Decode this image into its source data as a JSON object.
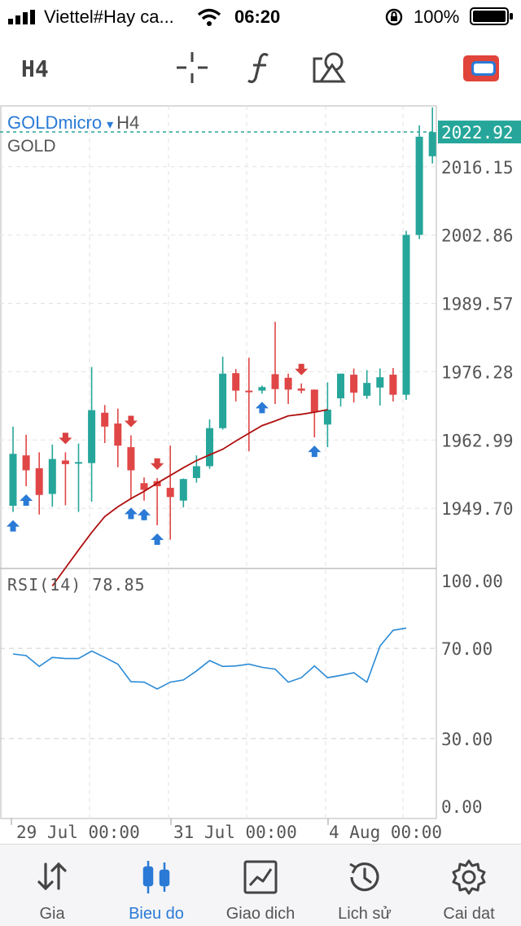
{
  "status_bar": {
    "carrier": "Viettel#Hay ca...",
    "time": "06:20",
    "battery_percent": "100%",
    "icons": [
      "signal-bars-icon",
      "wifi-icon",
      "orientation-lock-icon",
      "battery-icon"
    ]
  },
  "toolbar": {
    "timeframe": "H4",
    "icons": [
      "crosshair-icon",
      "indicator-function-icon",
      "objects-shapes-icon",
      "trade-toggle-icon"
    ]
  },
  "chart": {
    "symbol": "GOLDmicro",
    "caret": "▾",
    "symbol_timeframe": "H4",
    "description": "GOLD",
    "current_price": "2022.92",
    "price_axis": [
      "2016.15",
      "2002.86",
      "1989.57",
      "1976.28",
      "1962.99",
      "1949.70"
    ],
    "rsi_label": "RSI(14) 78.85",
    "rsi_axis": [
      "100.00",
      "70.00",
      "30.00",
      "0.00"
    ],
    "time_axis": [
      "29 Jul 00:00",
      "31 Jul 00:00",
      "4 Aug 00:00"
    ],
    "colors": {
      "bull": "#26a69a",
      "bear": "#e04646",
      "ma": "#b01010",
      "rsi": "#2a8ad6",
      "price_tag": "#26a69a"
    }
  },
  "chart_data": {
    "type": "candlestick",
    "candles": [
      {
        "o": 1950.2,
        "h": 1965.6,
        "l": 1949.0,
        "c": 1960.3
      },
      {
        "o": 1960.0,
        "h": 1964.0,
        "l": 1954.0,
        "c": 1957.1
      },
      {
        "o": 1957.5,
        "h": 1960.6,
        "l": 1948.5,
        "c": 1952.3
      },
      {
        "o": 1952.5,
        "h": 1962.1,
        "l": 1950.0,
        "c": 1959.3
      },
      {
        "o": 1959.0,
        "h": 1960.6,
        "l": 1950.3,
        "c": 1958.3
      },
      {
        "o": 1958.5,
        "h": 1962.3,
        "l": 1949.0,
        "c": 1958.7
      },
      {
        "o": 1958.5,
        "h": 1977.2,
        "l": 1951.0,
        "c": 1968.8
      },
      {
        "o": 1968.3,
        "h": 1969.8,
        "l": 1962.4,
        "c": 1965.6
      },
      {
        "o": 1966.2,
        "h": 1969.1,
        "l": 1957.7,
        "c": 1961.9
      },
      {
        "o": 1961.6,
        "h": 1963.9,
        "l": 1951.4,
        "c": 1957.1
      },
      {
        "o": 1954.6,
        "h": 1955.7,
        "l": 1951.2,
        "c": 1953.3
      },
      {
        "o": 1955.0,
        "h": 1955.6,
        "l": 1946.4,
        "c": 1954.0
      },
      {
        "o": 1953.7,
        "h": 1961.9,
        "l": 1943.6,
        "c": 1951.9
      },
      {
        "o": 1951.2,
        "h": 1955.5,
        "l": 1949.9,
        "c": 1955.4
      },
      {
        "o": 1955.6,
        "h": 1960.0,
        "l": 1954.7,
        "c": 1957.9
      },
      {
        "o": 1957.9,
        "h": 1967.0,
        "l": 1957.4,
        "c": 1965.3
      },
      {
        "o": 1965.3,
        "h": 1979.2,
        "l": 1965.0,
        "c": 1975.9
      },
      {
        "o": 1976.0,
        "h": 1976.8,
        "l": 1970.5,
        "c": 1972.6
      },
      {
        "o": 1972.6,
        "h": 1979.0,
        "l": 1960.8,
        "c": 1972.3
      },
      {
        "o": 1972.6,
        "h": 1973.6,
        "l": 1972.0,
        "c": 1973.3
      },
      {
        "o": 1975.8,
        "h": 1986.0,
        "l": 1970.0,
        "c": 1972.9
      },
      {
        "o": 1975.1,
        "h": 1975.9,
        "l": 1970.0,
        "c": 1972.8
      },
      {
        "o": 1973.0,
        "h": 1974.0,
        "l": 1972.1,
        "c": 1972.6
      },
      {
        "o": 1972.8,
        "h": 1972.8,
        "l": 1963.5,
        "c": 1968.4
      },
      {
        "o": 1966.0,
        "h": 1974.2,
        "l": 1961.6,
        "c": 1968.9
      },
      {
        "o": 1971.1,
        "h": 1975.9,
        "l": 1969.5,
        "c": 1975.9
      },
      {
        "o": 1975.7,
        "h": 1976.9,
        "l": 1970.3,
        "c": 1972.2
      },
      {
        "o": 1971.6,
        "h": 1976.6,
        "l": 1971.0,
        "c": 1974.1
      },
      {
        "o": 1973.2,
        "h": 1976.9,
        "l": 1969.7,
        "c": 1975.2
      },
      {
        "o": 1975.7,
        "h": 1977.0,
        "l": 1970.5,
        "c": 1971.8
      },
      {
        "o": 1971.8,
        "h": 2003.7,
        "l": 1970.8,
        "c": 2002.9
      },
      {
        "o": 2002.9,
        "h": 2024.2,
        "l": 2002.1,
        "c": 2022.0
      },
      {
        "o": 2018.2,
        "h": 2027.7,
        "l": 2016.8,
        "c": 2022.9
      }
    ],
    "moving_average": [
      1934.6,
      1938.1,
      1941.6,
      1945.0,
      1948.1,
      1950.0,
      1951.6,
      1953.0,
      1954.6,
      1956.1,
      1957.6,
      1959.0,
      1960.1,
      1961.2,
      1962.8,
      1964.3,
      1965.8,
      1966.7,
      1967.7,
      1968.0,
      1968.4,
      1968.9
    ],
    "ma_start_index": 3,
    "rsi": [
      67.5,
      66.8,
      62.0,
      66.0,
      65.5,
      65.5,
      68.8,
      66.0,
      63.0,
      55.2,
      55.0,
      52.0,
      55.0,
      56.0,
      60.0,
      64.6,
      62.0,
      62.2,
      63.0,
      61.6,
      60.8,
      55.0,
      57.0,
      62.2,
      57.0,
      58.0,
      59.2,
      55.0,
      71.0,
      78.0,
      79.0
    ],
    "rsi_start_index": 0,
    "buy_markers": [
      0,
      1,
      9,
      10,
      11,
      19,
      23
    ],
    "sell_markers": [
      4,
      9,
      11,
      11,
      22
    ],
    "price_ylim": [
      1938.0,
      2028.0
    ],
    "rsi_ylim": [
      0,
      100
    ],
    "grid": true
  },
  "tabs": [
    {
      "label": "Gia",
      "icon": "arrows-up-down-icon",
      "active": false
    },
    {
      "label": "Bieu do",
      "icon": "candlestick-icon",
      "active": true
    },
    {
      "label": "Giao dich",
      "icon": "trade-chart-icon",
      "active": false
    },
    {
      "label": "Lich sử",
      "icon": "history-clock-icon",
      "active": false
    },
    {
      "label": "Cai dat",
      "icon": "gear-icon",
      "active": false
    }
  ]
}
